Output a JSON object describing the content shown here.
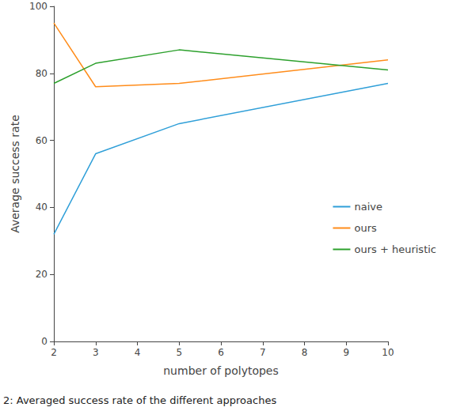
{
  "chart_data": {
    "type": "line",
    "x_label": "number of polytopes",
    "y_label": "Average success rate",
    "caption": "2: Averaged success rate of the different approaches",
    "x": [
      2,
      3,
      5,
      10
    ],
    "series": [
      {
        "name": "naive",
        "color": "#2f9fd8",
        "values": [
          32,
          56,
          65,
          77
        ]
      },
      {
        "name": "ours",
        "color": "#ff8c1a",
        "values": [
          95,
          76,
          77,
          84
        ]
      },
      {
        "name": "ours + heuristic",
        "color": "#2ca02c",
        "values": [
          77,
          83,
          87,
          81
        ]
      }
    ],
    "xlim": [
      2,
      10
    ],
    "xticks": [
      2,
      3,
      4,
      5,
      6,
      7,
      8,
      9,
      10
    ],
    "ylim": [
      0,
      100
    ],
    "yticks": [
      0,
      20,
      40,
      60,
      80,
      100
    ],
    "grid": false,
    "legend": "right"
  }
}
